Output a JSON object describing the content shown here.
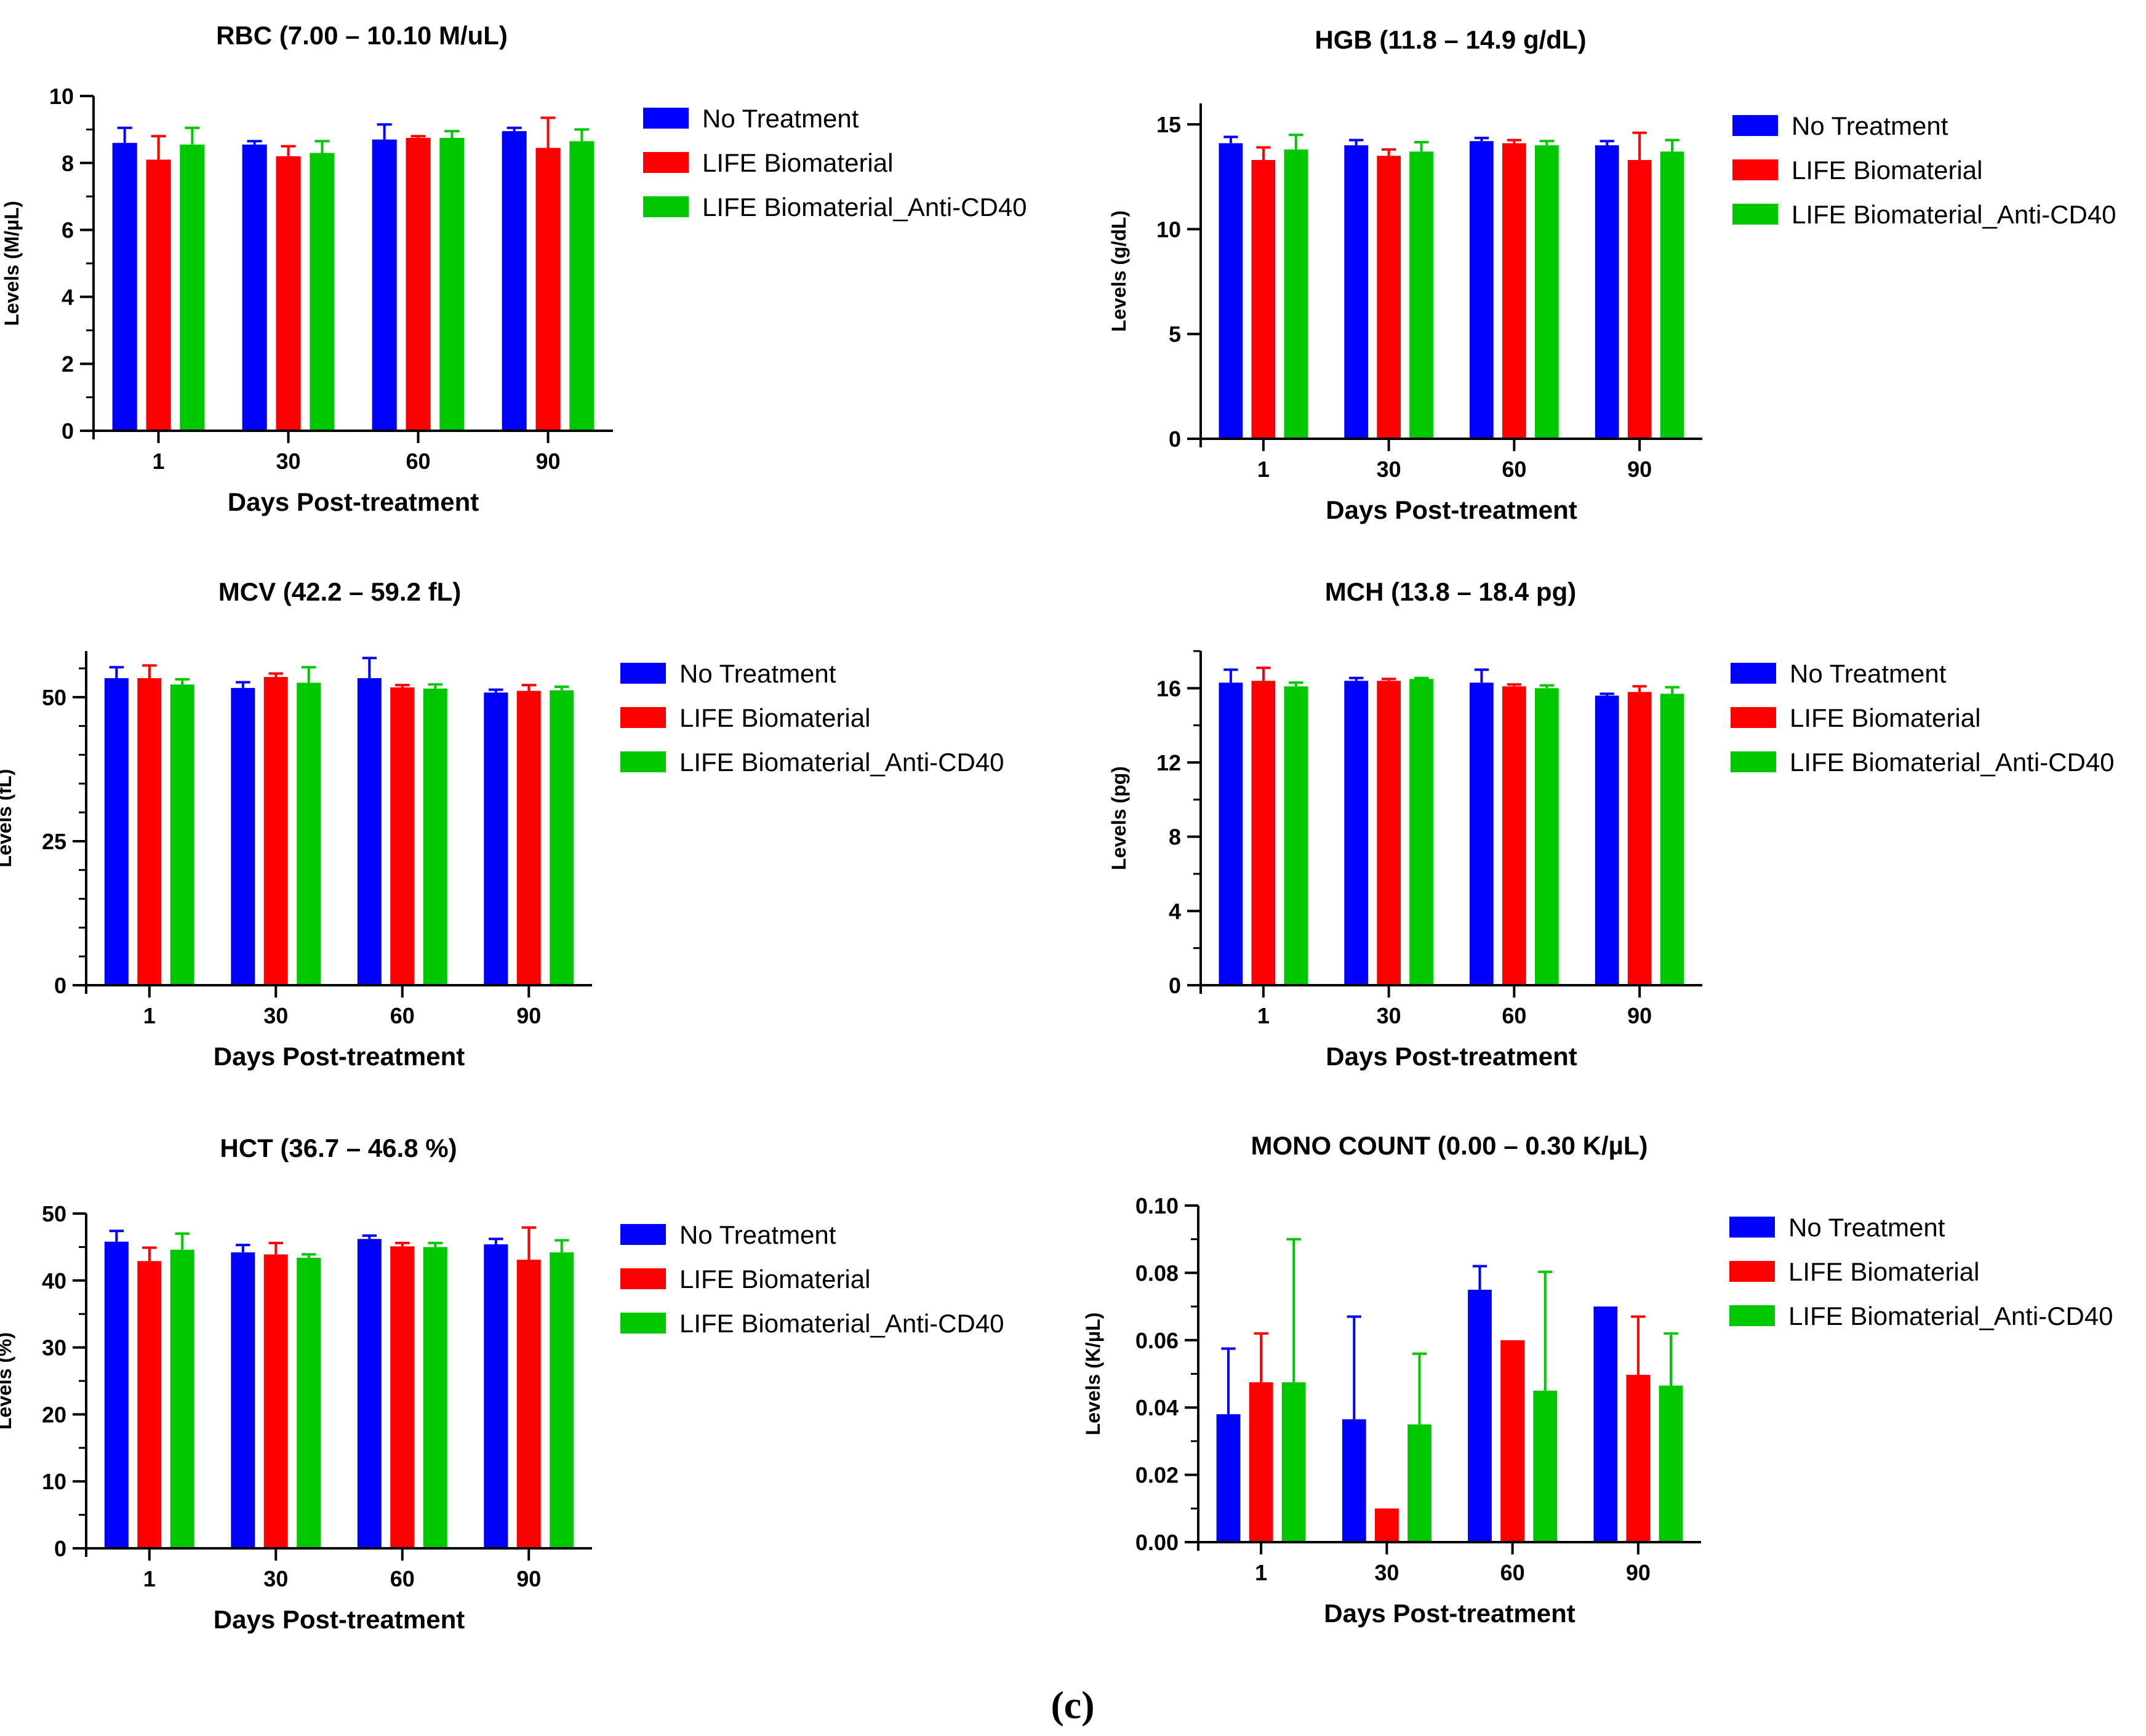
{
  "figure_caption": "(c)",
  "colors": {
    "No Treatment": "#0000ff",
    "LIFE Biomaterial": "#ff0000",
    "LIFE Biomaterial_Anti-CD40": "#00c800"
  },
  "chart_data": [
    {
      "type": "bar",
      "title": "RBC (7.00 – 10.10 M/uL)",
      "xlabel": "Days Post-treatment",
      "ylabel": "Levels (M/µL)",
      "categories": [
        "1",
        "30",
        "60",
        "90"
      ],
      "ylim": [
        0,
        10
      ],
      "yticks": [
        0,
        2,
        4,
        6,
        8,
        10
      ],
      "ytick_labels": [
        "0",
        "2",
        "4",
        "6",
        "8",
        "10"
      ],
      "minor_per_major": 1,
      "legend_position": "right",
      "series": [
        {
          "name": "No Treatment",
          "values": [
            8.6,
            8.55,
            8.7,
            8.95
          ],
          "errors": [
            0.45,
            0.1,
            0.45,
            0.1
          ]
        },
        {
          "name": "LIFE Biomaterial",
          "values": [
            8.1,
            8.2,
            8.75,
            8.45
          ],
          "errors": [
            0.7,
            0.3,
            0.05,
            0.9
          ]
        },
        {
          "name": "LIFE Biomaterial_Anti-CD40",
          "values": [
            8.55,
            8.3,
            8.75,
            8.65
          ],
          "errors": [
            0.5,
            0.35,
            0.2,
            0.35
          ]
        }
      ]
    },
    {
      "type": "bar",
      "title": "HGB (11.8 – 14.9 g/dL)",
      "xlabel": "Days Post-treatment",
      "ylabel": "Levels (g/dL)",
      "categories": [
        "1",
        "30",
        "60",
        "90"
      ],
      "ylim": [
        0,
        16
      ],
      "yticks": [
        0,
        5,
        10,
        15
      ],
      "ytick_labels": [
        "0",
        "5",
        "10",
        "15"
      ],
      "minor_per_major": 0,
      "legend_position": "right",
      "series": [
        {
          "name": "No Treatment",
          "values": [
            14.1,
            14.0,
            14.2,
            14.0
          ],
          "errors": [
            0.3,
            0.25,
            0.15,
            0.2
          ]
        },
        {
          "name": "LIFE Biomaterial",
          "values": [
            13.3,
            13.5,
            14.1,
            13.3
          ],
          "errors": [
            0.6,
            0.3,
            0.15,
            1.3
          ]
        },
        {
          "name": "LIFE Biomaterial_Anti-CD40",
          "values": [
            13.8,
            13.7,
            14.0,
            13.7
          ],
          "errors": [
            0.7,
            0.45,
            0.2,
            0.55
          ]
        }
      ]
    },
    {
      "type": "bar",
      "title": "MCV (42.2 – 59.2 fL)",
      "xlabel": "Days Post-treatment",
      "ylabel": "Levels (fL)",
      "categories": [
        "1",
        "30",
        "60",
        "90"
      ],
      "ylim": [
        0,
        58
      ],
      "yticks": [
        0,
        25,
        50
      ],
      "ytick_labels": [
        "0",
        "25",
        "50"
      ],
      "minor_per_major": 4,
      "legend_position": "right",
      "series": [
        {
          "name": "No Treatment",
          "values": [
            53.3,
            51.6,
            53.3,
            50.8
          ],
          "errors": [
            1.9,
            1.0,
            3.5,
            0.5
          ]
        },
        {
          "name": "LIFE Biomaterial",
          "values": [
            53.3,
            53.5,
            51.7,
            51.1
          ],
          "errors": [
            2.2,
            0.6,
            0.4,
            1.0
          ]
        },
        {
          "name": "LIFE Biomaterial_Anti-CD40",
          "values": [
            52.2,
            52.5,
            51.5,
            51.2
          ],
          "errors": [
            0.9,
            2.7,
            0.7,
            0.6
          ]
        }
      ]
    },
    {
      "type": "bar",
      "title": "MCH (13.8 – 18.4 pg)",
      "xlabel": "Days Post-treatment",
      "ylabel": "Levels (pg)",
      "categories": [
        "1",
        "30",
        "60",
        "90"
      ],
      "ylim": [
        0,
        18
      ],
      "yticks": [
        0,
        4,
        8,
        12,
        16
      ],
      "ytick_labels": [
        "0",
        "4",
        "8",
        "12",
        "16"
      ],
      "minor_per_major": 1,
      "legend_position": "right",
      "series": [
        {
          "name": "No Treatment",
          "values": [
            16.3,
            16.4,
            16.3,
            15.6
          ],
          "errors": [
            0.7,
            0.15,
            0.7,
            0.1
          ]
        },
        {
          "name": "LIFE Biomaterial",
          "values": [
            16.4,
            16.4,
            16.1,
            15.8
          ],
          "errors": [
            0.7,
            0.1,
            0.1,
            0.3
          ]
        },
        {
          "name": "LIFE Biomaterial_Anti-CD40",
          "values": [
            16.1,
            16.5,
            16.0,
            15.7
          ],
          "errors": [
            0.2,
            0.05,
            0.15,
            0.35
          ]
        }
      ]
    },
    {
      "type": "bar",
      "title": "HCT (36.7 –  46.8 %)",
      "xlabel": "Days Post-treatment",
      "ylabel": "Levels (%)",
      "categories": [
        "1",
        "30",
        "60",
        "90"
      ],
      "ylim": [
        0,
        50
      ],
      "yticks": [
        0,
        10,
        20,
        30,
        40,
        50
      ],
      "ytick_labels": [
        "0",
        "10",
        "20",
        "30",
        "40",
        "50"
      ],
      "minor_per_major": 1,
      "legend_position": "right",
      "series": [
        {
          "name": "No Treatment",
          "values": [
            45.8,
            44.2,
            46.2,
            45.4
          ],
          "errors": [
            1.6,
            1.1,
            0.5,
            0.8
          ]
        },
        {
          "name": "LIFE Biomaterial",
          "values": [
            42.9,
            43.9,
            45.1,
            43.1
          ],
          "errors": [
            2.0,
            1.7,
            0.5,
            4.8
          ]
        },
        {
          "name": "LIFE Biomaterial_Anti-CD40",
          "values": [
            44.6,
            43.4,
            45.0,
            44.2
          ],
          "errors": [
            2.4,
            0.5,
            0.6,
            1.8
          ]
        }
      ]
    },
    {
      "type": "bar",
      "title": "MONO COUNT (0.00 – 0.30 K/µL)",
      "xlabel": "Days Post-treatment",
      "ylabel": "Levels (K/µL)",
      "categories": [
        "1",
        "30",
        "60",
        "90"
      ],
      "ylim": [
        0,
        0.1
      ],
      "yticks": [
        0,
        0.02,
        0.04,
        0.06,
        0.08,
        0.1
      ],
      "ytick_labels": [
        "0.00",
        "0.02",
        "0.04",
        "0.06",
        "0.08",
        "0.10"
      ],
      "minor_per_major": 1,
      "legend_position": "right",
      "series": [
        {
          "name": "No Treatment",
          "values": [
            0.038,
            0.0365,
            0.075,
            0.07
          ],
          "errors": [
            0.0195,
            0.0305,
            0.007,
            0
          ]
        },
        {
          "name": "LIFE Biomaterial",
          "values": [
            0.0475,
            0.01,
            0.06,
            0.0497
          ],
          "errors": [
            0.0145,
            0,
            0,
            0.0173
          ]
        },
        {
          "name": "LIFE Biomaterial_Anti-CD40",
          "values": [
            0.0475,
            0.035,
            0.045,
            0.0465
          ],
          "errors": [
            0.0425,
            0.021,
            0.0353,
            0.0155
          ]
        }
      ]
    }
  ]
}
